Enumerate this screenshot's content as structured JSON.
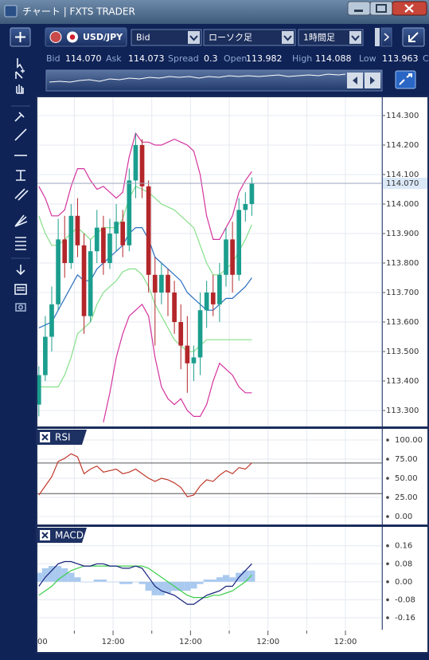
{
  "window": {
    "title": "チャート | FXTS TRADER"
  },
  "toolbar": {
    "symbol": "USD/JPY",
    "price_type": "Bid",
    "chart_type": "ローソク足",
    "timeframe": "1時間足"
  },
  "quote": [
    {
      "label": "Bid",
      "value": "114.070"
    },
    {
      "label": "Ask",
      "value": "114.073"
    },
    {
      "label": "Spread",
      "value": "0.3"
    },
    {
      "label": "Open",
      "value": "113.982"
    },
    {
      "label": "High",
      "value": "114.088"
    },
    {
      "label": "Low",
      "value": "113.963"
    },
    {
      "label": "C"
    }
  ],
  "chart_data": [
    {
      "type": "candlestick",
      "grid": true,
      "up_color": "#1b9e8e",
      "down_color": "#b3262a",
      "xlim": [
        0.28,
        53.67
      ],
      "ylim": [
        113.246,
        114.362
      ],
      "yticks": [
        {
          "value": 114.3,
          "label": "114.300"
        },
        {
          "value": 114.2,
          "label": "114.200"
        },
        {
          "value": 114.1,
          "label": "114.100"
        },
        {
          "value": 114.0,
          "label": "114.000"
        },
        {
          "value": 113.9,
          "label": "113.900"
        },
        {
          "value": 113.8,
          "label": "113.800"
        },
        {
          "value": 113.7,
          "label": "113.700"
        },
        {
          "value": 113.6,
          "label": "113.600"
        },
        {
          "value": 113.5,
          "label": "113.500"
        },
        {
          "value": 113.4,
          "label": "113.400"
        },
        {
          "value": 113.3,
          "label": "113.300"
        }
      ],
      "current_price": {
        "value": 114.07,
        "label": "114.070"
      },
      "x": [
        0,
        1,
        2,
        3,
        4,
        5,
        6,
        7,
        8,
        9,
        10,
        11,
        12,
        13,
        14,
        15,
        16,
        17,
        18,
        19,
        20,
        21,
        22,
        23,
        24,
        25,
        26,
        27,
        28,
        29,
        30,
        31,
        32,
        33
      ],
      "open": [
        113.32,
        113.42,
        113.55,
        113.66,
        113.88,
        113.8,
        113.96,
        113.86,
        113.62,
        113.84,
        113.92,
        113.8,
        113.9,
        113.94,
        113.86,
        114.08,
        114.2,
        114.06,
        113.76,
        113.7,
        113.76,
        113.7,
        113.6,
        113.52,
        113.46,
        113.48,
        113.64,
        113.7,
        113.66,
        113.76,
        113.88,
        113.76,
        113.98,
        114.0
      ],
      "high": [
        113.45,
        113.62,
        113.72,
        113.95,
        113.96,
        114.0,
        114.02,
        113.9,
        113.88,
        113.98,
        113.96,
        113.95,
        114.0,
        113.98,
        114.12,
        114.24,
        114.22,
        114.08,
        113.82,
        113.8,
        113.78,
        113.74,
        113.66,
        113.62,
        113.52,
        113.7,
        113.74,
        113.76,
        113.8,
        113.92,
        113.94,
        114.02,
        114.04,
        114.09
      ],
      "low": [
        113.28,
        113.4,
        113.5,
        113.64,
        113.75,
        113.78,
        113.82,
        113.56,
        113.6,
        113.8,
        113.76,
        113.78,
        113.84,
        113.82,
        113.84,
        114.02,
        114.02,
        113.7,
        113.52,
        113.66,
        113.62,
        113.56,
        113.44,
        113.36,
        113.4,
        113.42,
        113.58,
        113.62,
        113.6,
        113.72,
        113.7,
        113.74,
        113.94,
        113.96
      ],
      "close": [
        113.42,
        113.55,
        113.66,
        113.88,
        113.8,
        113.96,
        113.86,
        113.62,
        113.84,
        113.92,
        113.8,
        113.9,
        113.94,
        113.86,
        114.08,
        114.2,
        114.06,
        113.76,
        113.7,
        113.76,
        113.7,
        113.6,
        113.52,
        113.46,
        113.48,
        113.64,
        113.7,
        113.66,
        113.76,
        113.88,
        113.76,
        113.98,
        114.0,
        114.07
      ],
      "series": [
        {
          "color": "#d4339e",
          "values": [
            114.06,
            114.02,
            113.96,
            113.96,
            113.98,
            114.06,
            114.12,
            114.12,
            114.08,
            114.05,
            114.06,
            114.04,
            114.02,
            114.04,
            114.16,
            114.24,
            114.21,
            114.21,
            114.2,
            114.2,
            114.21,
            114.22,
            114.21,
            114.2,
            114.18,
            114.1,
            113.96,
            113.88,
            113.88,
            113.92,
            113.96,
            114.04,
            114.08,
            114.11
          ]
        },
        {
          "color": "#86e08a",
          "values": [
            113.96,
            113.9,
            113.86,
            113.86,
            113.88,
            113.9,
            113.92,
            113.9,
            113.88,
            113.9,
            113.92,
            113.92,
            113.92,
            113.95,
            114.02,
            114.06,
            114.05,
            114.04,
            114.02,
            114.0,
            113.99,
            113.98,
            113.96,
            113.94,
            113.92,
            113.86,
            113.8,
            113.76,
            113.76,
            113.78,
            113.8,
            113.84,
            113.88,
            113.93
          ]
        },
        {
          "color": "#2a6fc0",
          "values": [
            113.58,
            113.59,
            113.6,
            113.64,
            113.68,
            113.72,
            113.76,
            113.74,
            113.74,
            113.78,
            113.8,
            113.82,
            113.84,
            113.86,
            113.9,
            113.92,
            113.92,
            113.88,
            113.82,
            113.8,
            113.78,
            113.76,
            113.74,
            113.7,
            113.68,
            113.66,
            113.64,
            113.64,
            113.66,
            113.68,
            113.68,
            113.7,
            113.72,
            113.75
          ]
        },
        {
          "color": "#86e08a",
          "values": [
            113.38,
            113.38,
            113.38,
            113.38,
            113.42,
            113.48,
            113.56,
            113.58,
            113.6,
            113.66,
            113.7,
            113.72,
            113.74,
            113.77,
            113.78,
            113.78,
            113.76,
            113.72,
            113.66,
            113.62,
            113.58,
            113.54,
            113.52,
            113.5,
            113.5,
            113.52,
            113.54,
            113.54,
            113.54,
            113.54,
            113.54,
            113.54,
            113.54,
            113.54
          ]
        },
        {
          "color": "#d4339e",
          "values": [
            null,
            null,
            null,
            null,
            null,
            null,
            null,
            null,
            null,
            null,
            113.26,
            113.36,
            113.48,
            113.56,
            113.62,
            113.64,
            113.66,
            113.62,
            113.48,
            113.38,
            113.34,
            113.32,
            113.34,
            113.3,
            113.28,
            113.28,
            113.32,
            113.4,
            113.46,
            113.44,
            113.42,
            113.38,
            113.36,
            113.36
          ]
        }
      ]
    },
    {
      "type": "line",
      "title": "RSI",
      "grid": true,
      "xlim": [
        0.28,
        53.67
      ],
      "ylim": [
        -10.4,
        114.6
      ],
      "yticks": [
        {
          "value": 100,
          "label": "100.00"
        },
        {
          "value": 75,
          "label": "75.00"
        },
        {
          "value": 50,
          "label": "50.00"
        },
        {
          "value": 25,
          "label": "25.00"
        },
        {
          "value": 0,
          "label": "0.00"
        }
      ],
      "levels": [
        70,
        30
      ],
      "x": [
        0,
        1,
        2,
        3,
        4,
        5,
        6,
        7,
        8,
        9,
        10,
        11,
        12,
        13,
        14,
        15,
        16,
        17,
        18,
        19,
        20,
        21,
        22,
        23,
        24,
        25,
        26,
        27,
        28,
        29,
        30,
        31,
        32,
        33
      ],
      "series": [
        {
          "color": "#c0392b",
          "values": [
            28,
            40,
            52,
            72,
            76,
            82,
            78,
            56,
            62,
            66,
            58,
            60,
            62,
            56,
            58,
            62,
            56,
            50,
            46,
            50,
            48,
            44,
            38,
            26,
            28,
            40,
            48,
            46,
            54,
            60,
            56,
            64,
            62,
            70
          ]
        }
      ]
    },
    {
      "type": "line",
      "title": "MACD",
      "grid": true,
      "xlim": [
        0.28,
        53.67
      ],
      "ylim": [
        -0.213,
        0.244
      ],
      "yticks": [
        0.16,
        0.08,
        {
          "value": 0,
          "label": "0.00"
        },
        -0.08,
        -0.16
      ],
      "xticks": [
        {
          "value": 0,
          "label": "00"
        },
        {
          "value": 12,
          "label": "12:00"
        },
        {
          "value": 24,
          "label": "12:00"
        },
        {
          "value": 36,
          "label": "12:00"
        },
        {
          "value": 48,
          "label": "12:00"
        }
      ],
      "xminorticks": [
        6,
        18,
        30,
        42
      ],
      "x": [
        0,
        1,
        2,
        3,
        4,
        5,
        6,
        7,
        8,
        9,
        10,
        11,
        12,
        13,
        14,
        15,
        16,
        17,
        18,
        19,
        20,
        21,
        22,
        23,
        24,
        25,
        26,
        27,
        28,
        29,
        30,
        31,
        32,
        33
      ],
      "series": [
        {
          "type": "bar",
          "color": "#a9c9ef",
          "values": [
            0.04,
            0.06,
            0.07,
            0.07,
            0.06,
            0.04,
            0.02,
            0.0,
            0.0,
            0.01,
            0.01,
            0.0,
            0.0,
            -0.01,
            -0.01,
            0.0,
            -0.01,
            -0.04,
            -0.06,
            -0.06,
            -0.05,
            -0.04,
            -0.04,
            -0.04,
            -0.03,
            -0.01,
            0.01,
            0.01,
            0.02,
            0.03,
            0.02,
            0.04,
            0.05,
            0.05
          ]
        },
        {
          "color": "#3ccf4a",
          "values": [
            -0.06,
            -0.04,
            -0.02,
            0.01,
            0.03,
            0.05,
            0.06,
            0.07,
            0.07,
            0.07,
            0.07,
            0.07,
            0.07,
            0.07,
            0.07,
            0.07,
            0.07,
            0.06,
            0.04,
            0.02,
            0.0,
            -0.02,
            -0.04,
            -0.06,
            -0.07,
            -0.07,
            -0.07,
            -0.06,
            -0.06,
            -0.05,
            -0.04,
            -0.02,
            0.0,
            0.03
          ]
        },
        {
          "color": "#16207a",
          "values": [
            -0.02,
            0.02,
            0.05,
            0.08,
            0.09,
            0.09,
            0.08,
            0.07,
            0.07,
            0.08,
            0.08,
            0.07,
            0.07,
            0.06,
            0.06,
            0.07,
            0.06,
            0.02,
            -0.02,
            -0.04,
            -0.05,
            -0.06,
            -0.08,
            -0.1,
            -0.1,
            -0.08,
            -0.06,
            -0.05,
            -0.04,
            -0.02,
            -0.02,
            0.02,
            0.05,
            0.08
          ]
        }
      ]
    }
  ]
}
